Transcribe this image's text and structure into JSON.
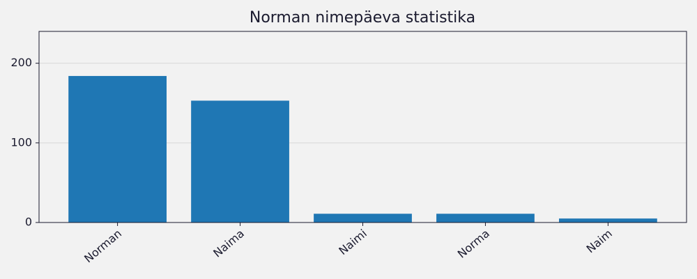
{
  "chart_data": {
    "type": "bar",
    "title": "Norman nimepäeva statistika",
    "categories": [
      "Norman",
      "Naima",
      "Naimi",
      "Norma",
      "Naim"
    ],
    "values": [
      184,
      153,
      11,
      11,
      5
    ],
    "color": "#1f77b4",
    "ylim": [
      0,
      240
    ],
    "yticks": [
      0,
      100,
      200
    ],
    "grid": true
  }
}
